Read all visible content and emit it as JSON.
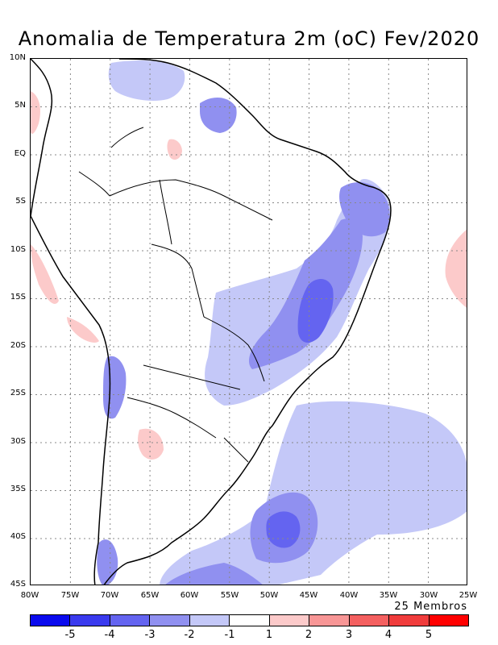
{
  "title": "Anomalia de Temperatura 2m (oC) Fev/2020",
  "members_label": "25 Membros",
  "lat_ticks": [
    "10N",
    "5N",
    "EQ",
    "5S",
    "10S",
    "15S",
    "20S",
    "25S",
    "30S",
    "35S",
    "40S",
    "45S"
  ],
  "lon_ticks": [
    "80W",
    "75W",
    "70W",
    "65W",
    "60W",
    "55W",
    "50W",
    "45W",
    "40W",
    "35W",
    "30W",
    "25W"
  ],
  "colorbar": {
    "labels": [
      "-5",
      "-4",
      "-3",
      "-2",
      "-1",
      "1",
      "2",
      "3",
      "4",
      "5"
    ],
    "colors": [
      "#0a0aee",
      "#3a3aee",
      "#6464f0",
      "#9090f0",
      "#c4c8f8",
      "#ffffff",
      "#fccaca",
      "#f89696",
      "#f46060",
      "#f03c3c",
      "#ff0000"
    ]
  },
  "map": {
    "grid": true,
    "lat_range": [
      "45S",
      "10N"
    ],
    "lon_range": [
      "80W",
      "25W"
    ]
  }
}
